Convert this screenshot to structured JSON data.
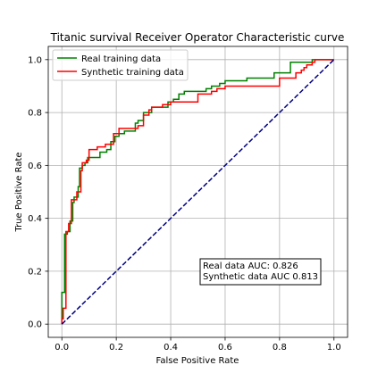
{
  "chart_data": {
    "type": "line",
    "title": "Titanic survival Receiver Operator Characteristic curve",
    "xlabel": "False Positive Rate",
    "ylabel": "True Positive Rate",
    "xlim": [
      -0.05,
      1.05
    ],
    "ylim": [
      -0.05,
      1.05
    ],
    "x_ticks": [
      0.0,
      0.2,
      0.4,
      0.6,
      0.8,
      1.0
    ],
    "x_tick_labels": [
      "0.0",
      "0.2",
      "0.4",
      "0.6",
      "0.8",
      "1.0"
    ],
    "y_ticks": [
      0.0,
      0.2,
      0.4,
      0.6,
      0.8,
      1.0
    ],
    "y_tick_labels": [
      "0.0",
      "0.2",
      "0.4",
      "0.6",
      "0.8",
      "1.0"
    ],
    "grid": true,
    "legend_location": "upper left",
    "series": [
      {
        "name": "Real training data",
        "color": "#008000",
        "step": true,
        "points": [
          [
            0.0,
            0.0
          ],
          [
            0.0,
            0.12
          ],
          [
            0.01,
            0.12
          ],
          [
            0.01,
            0.34
          ],
          [
            0.02,
            0.34
          ],
          [
            0.02,
            0.35
          ],
          [
            0.03,
            0.35
          ],
          [
            0.03,
            0.39
          ],
          [
            0.04,
            0.39
          ],
          [
            0.04,
            0.46
          ],
          [
            0.045,
            0.46
          ],
          [
            0.045,
            0.48
          ],
          [
            0.06,
            0.48
          ],
          [
            0.06,
            0.52
          ],
          [
            0.065,
            0.52
          ],
          [
            0.065,
            0.59
          ],
          [
            0.075,
            0.59
          ],
          [
            0.075,
            0.6
          ],
          [
            0.085,
            0.6
          ],
          [
            0.085,
            0.61
          ],
          [
            0.095,
            0.61
          ],
          [
            0.095,
            0.63
          ],
          [
            0.14,
            0.63
          ],
          [
            0.14,
            0.65
          ],
          [
            0.165,
            0.65
          ],
          [
            0.165,
            0.66
          ],
          [
            0.18,
            0.66
          ],
          [
            0.18,
            0.69
          ],
          [
            0.195,
            0.69
          ],
          [
            0.195,
            0.71
          ],
          [
            0.21,
            0.71
          ],
          [
            0.21,
            0.72
          ],
          [
            0.23,
            0.72
          ],
          [
            0.23,
            0.73
          ],
          [
            0.27,
            0.73
          ],
          [
            0.27,
            0.76
          ],
          [
            0.28,
            0.76
          ],
          [
            0.28,
            0.77
          ],
          [
            0.3,
            0.77
          ],
          [
            0.3,
            0.8
          ],
          [
            0.33,
            0.8
          ],
          [
            0.33,
            0.82
          ],
          [
            0.39,
            0.82
          ],
          [
            0.39,
            0.84
          ],
          [
            0.41,
            0.84
          ],
          [
            0.41,
            0.85
          ],
          [
            0.43,
            0.85
          ],
          [
            0.43,
            0.87
          ],
          [
            0.45,
            0.87
          ],
          [
            0.45,
            0.88
          ],
          [
            0.53,
            0.88
          ],
          [
            0.53,
            0.89
          ],
          [
            0.55,
            0.89
          ],
          [
            0.55,
            0.9
          ],
          [
            0.58,
            0.9
          ],
          [
            0.58,
            0.91
          ],
          [
            0.6,
            0.91
          ],
          [
            0.6,
            0.92
          ],
          [
            0.68,
            0.92
          ],
          [
            0.68,
            0.93
          ],
          [
            0.78,
            0.93
          ],
          [
            0.78,
            0.95
          ],
          [
            0.84,
            0.95
          ],
          [
            0.84,
            0.99
          ],
          [
            0.92,
            0.99
          ],
          [
            0.92,
            1.0
          ],
          [
            1.0,
            1.0
          ]
        ]
      },
      {
        "name": "Synthetic training data",
        "color": "#ff0000",
        "step": true,
        "points": [
          [
            0.0,
            0.0
          ],
          [
            0.0,
            0.02
          ],
          [
            0.005,
            0.02
          ],
          [
            0.005,
            0.06
          ],
          [
            0.015,
            0.06
          ],
          [
            0.015,
            0.35
          ],
          [
            0.025,
            0.35
          ],
          [
            0.025,
            0.38
          ],
          [
            0.035,
            0.38
          ],
          [
            0.035,
            0.47
          ],
          [
            0.055,
            0.47
          ],
          [
            0.055,
            0.5
          ],
          [
            0.07,
            0.5
          ],
          [
            0.07,
            0.58
          ],
          [
            0.075,
            0.58
          ],
          [
            0.075,
            0.61
          ],
          [
            0.09,
            0.61
          ],
          [
            0.09,
            0.62
          ],
          [
            0.1,
            0.62
          ],
          [
            0.1,
            0.66
          ],
          [
            0.13,
            0.66
          ],
          [
            0.13,
            0.67
          ],
          [
            0.16,
            0.67
          ],
          [
            0.16,
            0.68
          ],
          [
            0.19,
            0.68
          ],
          [
            0.19,
            0.72
          ],
          [
            0.21,
            0.72
          ],
          [
            0.21,
            0.74
          ],
          [
            0.28,
            0.74
          ],
          [
            0.28,
            0.75
          ],
          [
            0.3,
            0.75
          ],
          [
            0.3,
            0.79
          ],
          [
            0.32,
            0.79
          ],
          [
            0.32,
            0.81
          ],
          [
            0.33,
            0.81
          ],
          [
            0.33,
            0.82
          ],
          [
            0.37,
            0.82
          ],
          [
            0.37,
            0.83
          ],
          [
            0.4,
            0.83
          ],
          [
            0.4,
            0.84
          ],
          [
            0.5,
            0.84
          ],
          [
            0.5,
            0.87
          ],
          [
            0.55,
            0.87
          ],
          [
            0.55,
            0.88
          ],
          [
            0.57,
            0.88
          ],
          [
            0.57,
            0.89
          ],
          [
            0.6,
            0.89
          ],
          [
            0.6,
            0.9
          ],
          [
            0.8,
            0.9
          ],
          [
            0.8,
            0.93
          ],
          [
            0.86,
            0.93
          ],
          [
            0.86,
            0.95
          ],
          [
            0.88,
            0.95
          ],
          [
            0.88,
            0.96
          ],
          [
            0.89,
            0.96
          ],
          [
            0.89,
            0.97
          ],
          [
            0.9,
            0.97
          ],
          [
            0.9,
            0.98
          ],
          [
            0.92,
            0.98
          ],
          [
            0.92,
            0.99
          ],
          [
            0.93,
            0.99
          ],
          [
            0.93,
            1.0
          ],
          [
            1.0,
            1.0
          ]
        ]
      },
      {
        "name": "",
        "color": "#000080",
        "dashed": true,
        "points": [
          [
            0.0,
            0.0
          ],
          [
            1.0,
            1.0
          ]
        ]
      }
    ],
    "annotation": {
      "lines": [
        "Real data AUC: 0.826",
        "Synthetic data AUC 0.813"
      ],
      "anchor_data": [
        0.52,
        0.19
      ]
    }
  }
}
